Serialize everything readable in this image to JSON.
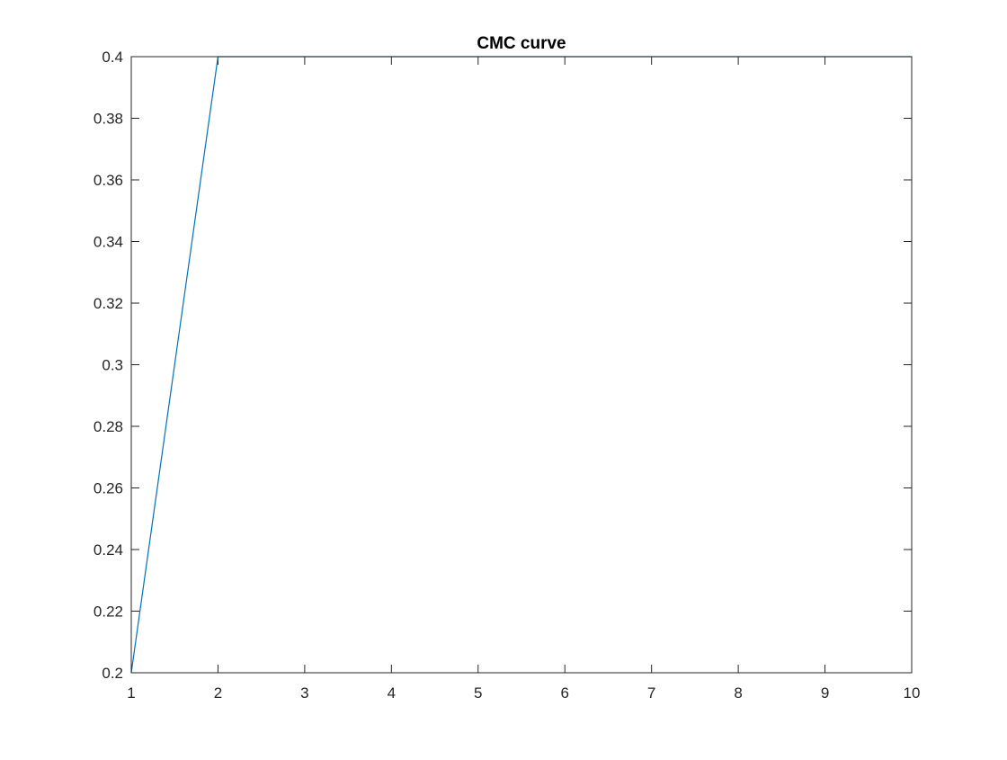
{
  "chart_data": {
    "type": "line",
    "title": "CMC curve",
    "xlabel": "",
    "ylabel": "",
    "xlim": [
      1,
      10
    ],
    "ylim": [
      0.2,
      0.4
    ],
    "grid": false,
    "x_ticks": [
      "1",
      "2",
      "3",
      "4",
      "5",
      "6",
      "7",
      "8",
      "9",
      "10"
    ],
    "y_ticks": [
      "0.2",
      "0.22",
      "0.24",
      "0.26",
      "0.28",
      "0.3",
      "0.32",
      "0.34",
      "0.36",
      "0.38",
      "0.4"
    ],
    "series": [
      {
        "color": "#0072BD",
        "x": [
          1,
          2,
          3,
          4,
          5,
          6,
          7,
          8,
          9,
          10
        ],
        "y": [
          0.2,
          0.4,
          0.4,
          0.4,
          0.4,
          0.4,
          0.4,
          0.4,
          0.4,
          0.4
        ]
      }
    ]
  }
}
